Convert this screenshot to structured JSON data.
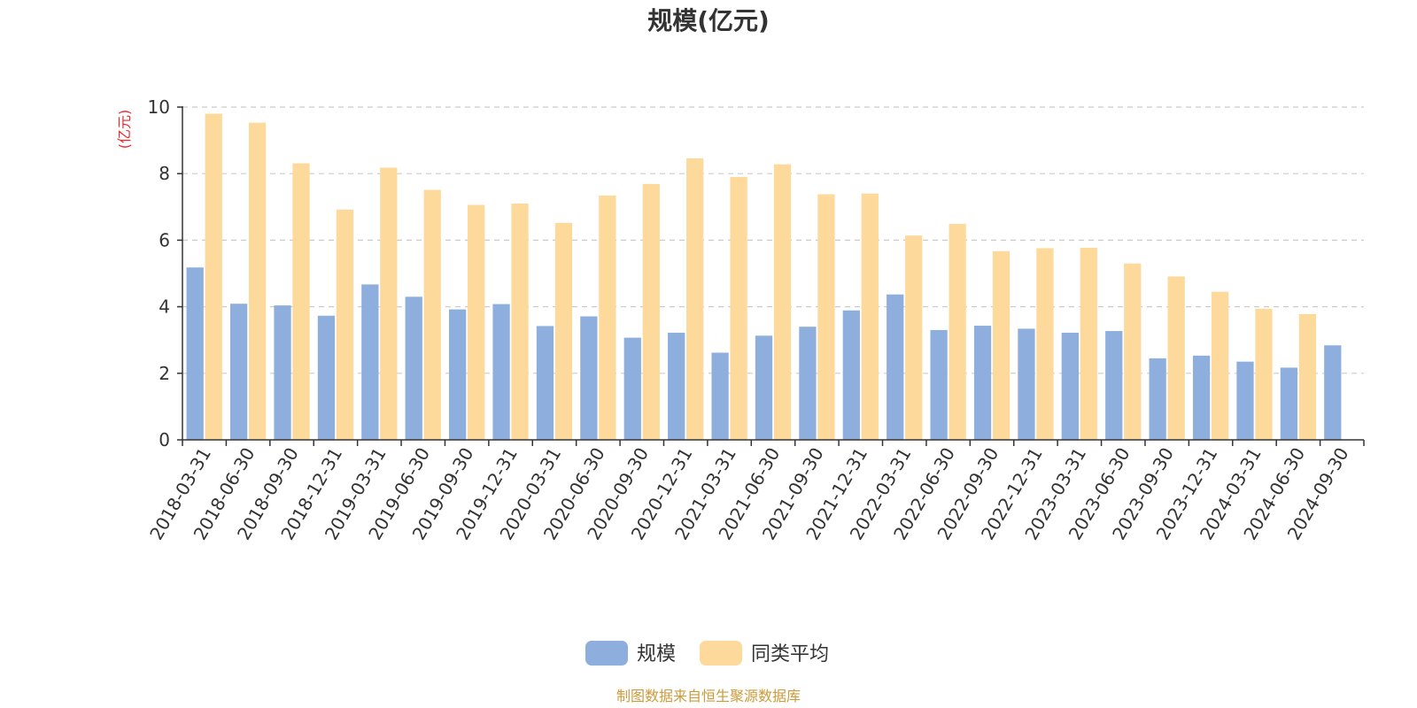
{
  "chart_data": {
    "type": "bar",
    "title": "规模(亿元)",
    "ylabel": "(亿元)",
    "ylim": [
      0,
      10
    ],
    "yticks": [
      0,
      2,
      4,
      6,
      8,
      10
    ],
    "grid": true,
    "legend_position": "bottom-center",
    "categories": [
      "2018-03-31",
      "2018-06-30",
      "2018-09-30",
      "2018-12-31",
      "2019-03-31",
      "2019-06-30",
      "2019-09-30",
      "2019-12-31",
      "2020-03-31",
      "2020-06-30",
      "2020-09-30",
      "2020-12-31",
      "2021-03-31",
      "2021-06-30",
      "2021-09-30",
      "2021-12-31",
      "2022-03-31",
      "2022-06-30",
      "2022-09-30",
      "2022-12-31",
      "2023-03-31",
      "2023-06-30",
      "2023-09-30",
      "2023-12-31",
      "2024-03-31",
      "2024-06-30",
      "2024-09-30"
    ],
    "series": [
      {
        "name": "规模",
        "color": "#8eaedd",
        "values": [
          5.18,
          4.09,
          4.04,
          3.73,
          4.67,
          4.3,
          3.92,
          4.08,
          3.42,
          3.71,
          3.07,
          3.22,
          2.62,
          3.13,
          3.4,
          3.89,
          4.37,
          3.3,
          3.43,
          3.34,
          3.22,
          3.27,
          2.45,
          2.53,
          2.35,
          2.17,
          2.84
        ]
      },
      {
        "name": "同类平均",
        "color": "#fdd99b",
        "values": [
          9.8,
          9.53,
          8.31,
          6.92,
          8.18,
          7.51,
          7.06,
          7.1,
          6.52,
          7.34,
          7.69,
          8.46,
          7.9,
          8.28,
          7.38,
          7.4,
          6.14,
          6.49,
          5.67,
          5.76,
          5.77,
          5.3,
          4.91,
          4.45,
          3.94,
          3.78,
          null
        ]
      }
    ]
  },
  "colors": {
    "axis": "#333333",
    "grid": "#cccccc",
    "unit_label": "#e8282b",
    "source_text": "#cc9a3a"
  },
  "source_note": "制图数据来自恒生聚源数据库"
}
